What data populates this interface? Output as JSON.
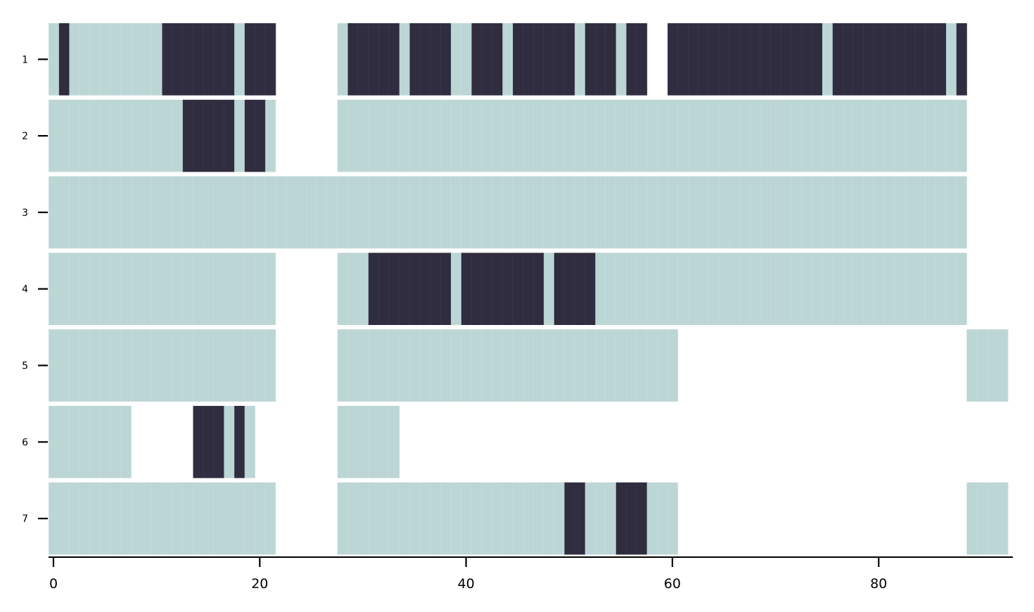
{
  "chart_data": {
    "type": "heatmap",
    "title": "",
    "xlabel": "",
    "ylabel": "",
    "xlim": [
      -0.5,
      92.5
    ],
    "x_ticks": [
      0,
      20,
      40,
      60,
      80
    ],
    "rows": [
      "1",
      "2",
      "3",
      "4",
      "5",
      "6",
      "7"
    ],
    "grid": false,
    "colors": {
      "light": "#bcd6d5",
      "dark": "#302d40",
      "divider": "#cfe2e1",
      "background": "#ffffff"
    },
    "states": {
      "light": 0,
      "dark": 1
    },
    "series": [
      {
        "name": "1",
        "segments": [
          [
            0,
            21,
            0
          ],
          [
            1,
            1,
            1
          ],
          [
            11,
            17,
            1
          ],
          [
            19,
            21,
            1
          ],
          [
            28,
            88,
            0
          ],
          [
            29,
            33,
            1
          ],
          [
            35,
            38,
            1
          ],
          [
            41,
            43,
            1
          ],
          [
            45,
            50,
            1
          ],
          [
            52,
            54,
            1
          ],
          [
            56,
            57,
            1
          ],
          [
            58,
            59,
            -1
          ],
          [
            60,
            74,
            1
          ],
          [
            76,
            86,
            1
          ],
          [
            88,
            88,
            1
          ]
        ]
      },
      {
        "name": "2",
        "segments": [
          [
            0,
            21,
            0
          ],
          [
            13,
            17,
            1
          ],
          [
            19,
            20,
            1
          ],
          [
            28,
            88,
            0
          ]
        ]
      },
      {
        "name": "3",
        "segments": [
          [
            0,
            88,
            0
          ]
        ]
      },
      {
        "name": "4",
        "segments": [
          [
            0,
            21,
            0
          ],
          [
            28,
            88,
            0
          ],
          [
            31,
            38,
            1
          ],
          [
            40,
            47,
            1
          ],
          [
            49,
            52,
            1
          ]
        ]
      },
      {
        "name": "5",
        "segments": [
          [
            0,
            21,
            0
          ],
          [
            28,
            60,
            0
          ],
          [
            89,
            92,
            0
          ]
        ]
      },
      {
        "name": "6",
        "segments": [
          [
            0,
            7,
            0
          ],
          [
            14,
            19,
            0
          ],
          [
            14,
            16,
            1
          ],
          [
            18,
            18,
            1
          ],
          [
            28,
            33,
            0
          ]
        ]
      },
      {
        "name": "7",
        "segments": [
          [
            0,
            21,
            0
          ],
          [
            28,
            60,
            0
          ],
          [
            50,
            51,
            1
          ],
          [
            54,
            55,
            -2
          ],
          [
            55,
            57,
            1
          ],
          [
            89,
            92,
            0
          ]
        ]
      }
    ]
  }
}
